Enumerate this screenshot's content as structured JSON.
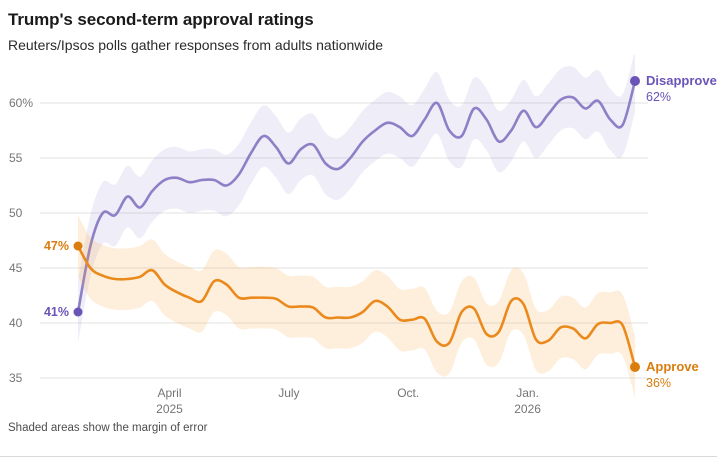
{
  "chart_data": {
    "type": "line",
    "title": "Trump's second-term approval ratings",
    "subtitle": "Reuters/Ipsos polls gather responses from adults nationwide",
    "note": "Shaded areas show the margin of error",
    "x_unit": "months since Jan 2025",
    "x_range": [
      0.7,
      14.7
    ],
    "ylim": [
      34,
      63
    ],
    "yticks": [
      35,
      40,
      45,
      50,
      55,
      60
    ],
    "ytick_labels": [
      "35",
      "40",
      "45",
      "50",
      "55",
      "60%"
    ],
    "xticks": [
      {
        "t": 3,
        "lines": [
          "April",
          "2025"
        ]
      },
      {
        "t": 6,
        "lines": [
          "July"
        ]
      },
      {
        "t": 9,
        "lines": [
          "Oct."
        ]
      },
      {
        "t": 12,
        "lines": [
          "Jan.",
          "2026"
        ]
      }
    ],
    "grid": true,
    "legend_position": "end-of-line",
    "colors": {
      "grid": "#e2e2e2",
      "tick": "#757575",
      "title": "#1a1a1a",
      "subtitle": "#2b2b2b",
      "note": "#4d4d4d"
    },
    "series": [
      {
        "name": "Disapprove",
        "line_color": "#8e7fc6",
        "accent_color": "#6a54b8",
        "band_color": "rgba(142,127,198,0.14)",
        "start_label": "41%",
        "end_label": "62%",
        "moe": 2.8,
        "values": [
          41,
          47,
          50,
          49.8,
          51.5,
          50.5,
          52,
          53,
          53.2,
          52.8,
          53,
          53,
          52.5,
          53.5,
          55.5,
          57,
          56,
          54.5,
          55.8,
          56.2,
          54.5,
          54,
          55,
          56.5,
          57.5,
          58.2,
          57.8,
          57,
          58.5,
          60,
          57.5,
          57,
          59.5,
          58.5,
          56.5,
          57.5,
          59.3,
          57.8,
          59,
          60.3,
          60.5,
          59.5,
          60.2,
          58.5,
          58,
          62
        ]
      },
      {
        "name": "Approve",
        "line_color": "#ea8a1d",
        "accent_color": "#d97d0e",
        "band_color": "rgba(247,166,61,0.18)",
        "start_label": "47%",
        "end_label": "36%",
        "moe": 2.8,
        "values": [
          47,
          45,
          44.3,
          44,
          44,
          44.2,
          44.8,
          43.5,
          42.8,
          42.3,
          42,
          43.8,
          43.5,
          42.3,
          42.3,
          42.3,
          42.2,
          41.5,
          41.5,
          41.4,
          40.5,
          40.5,
          40.5,
          41,
          42,
          41.5,
          40.3,
          40.3,
          40.4,
          38.3,
          38.2,
          41,
          41.3,
          39,
          39.2,
          42,
          41.7,
          38.5,
          38.4,
          39.6,
          39.5,
          38.6,
          39.9,
          40,
          39.8,
          36
        ]
      }
    ]
  }
}
